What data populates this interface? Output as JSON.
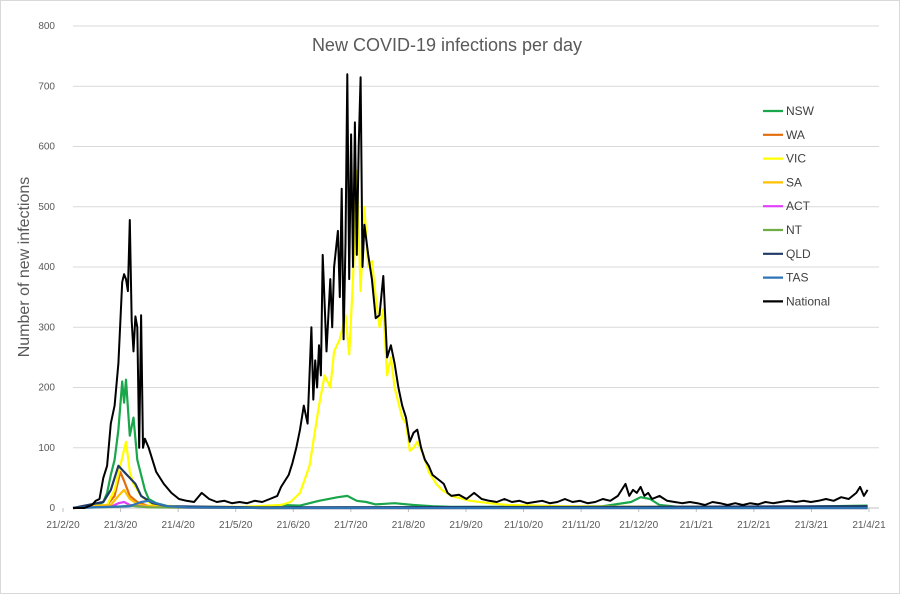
{
  "chart_data": {
    "type": "line",
    "title": "New COVID-19 infections per day",
    "xlabel": "",
    "ylabel": "Number of new infections",
    "ylim": [
      0,
      800
    ],
    "yticks": [
      "0",
      "100",
      "200",
      "300",
      "400",
      "500",
      "600",
      "700",
      "800"
    ],
    "xticks": [
      "21/2/20",
      "21/3/20",
      "21/4/20",
      "21/5/20",
      "21/6/20",
      "21/7/20",
      "21/8/20",
      "21/9/20",
      "21/10/20",
      "21/11/20",
      "21/12/20",
      "21/1/21",
      "21/2/21",
      "21/3/21",
      "21/4/21"
    ],
    "grid": true,
    "legend_position": "right",
    "series": [
      {
        "name": "NSW",
        "color": "#1aa64a",
        "points": [
          [
            0,
            0
          ],
          [
            12,
            2
          ],
          [
            16,
            10
          ],
          [
            18,
            25
          ],
          [
            20,
            55
          ],
          [
            22,
            80
          ],
          [
            24,
            130
          ],
          [
            26,
            210
          ],
          [
            27,
            175
          ],
          [
            28,
            213
          ],
          [
            30,
            120
          ],
          [
            32,
            150
          ],
          [
            34,
            80
          ],
          [
            36,
            55
          ],
          [
            38,
            30
          ],
          [
            40,
            15
          ],
          [
            44,
            8
          ],
          [
            50,
            3
          ],
          [
            60,
            2
          ],
          [
            80,
            1
          ],
          [
            100,
            2
          ],
          [
            110,
            5
          ],
          [
            120,
            4
          ],
          [
            130,
            12
          ],
          [
            140,
            18
          ],
          [
            145,
            20
          ],
          [
            150,
            12
          ],
          [
            155,
            10
          ],
          [
            160,
            6
          ],
          [
            170,
            8
          ],
          [
            180,
            5
          ],
          [
            190,
            3
          ],
          [
            200,
            2
          ],
          [
            230,
            2
          ],
          [
            260,
            2
          ],
          [
            280,
            3
          ],
          [
            295,
            10
          ],
          [
            300,
            18
          ],
          [
            305,
            15
          ],
          [
            310,
            5
          ],
          [
            320,
            2
          ],
          [
            350,
            1
          ],
          [
            380,
            2
          ],
          [
            400,
            3
          ],
          [
            420,
            4
          ]
        ]
      },
      {
        "name": "WA",
        "color": "#e36c0a",
        "points": [
          [
            0,
            0
          ],
          [
            18,
            5
          ],
          [
            22,
            20
          ],
          [
            25,
            60
          ],
          [
            27,
            45
          ],
          [
            30,
            20
          ],
          [
            34,
            10
          ],
          [
            40,
            3
          ],
          [
            50,
            1
          ],
          [
            100,
            0
          ],
          [
            200,
            0
          ],
          [
            300,
            1
          ],
          [
            420,
            0
          ]
        ]
      },
      {
        "name": "VIC",
        "color": "#ffff00",
        "points": [
          [
            0,
            0
          ],
          [
            18,
            5
          ],
          [
            22,
            30
          ],
          [
            25,
            70
          ],
          [
            28,
            110
          ],
          [
            30,
            60
          ],
          [
            32,
            40
          ],
          [
            36,
            20
          ],
          [
            42,
            5
          ],
          [
            60,
            2
          ],
          [
            90,
            2
          ],
          [
            110,
            5
          ],
          [
            115,
            10
          ],
          [
            120,
            25
          ],
          [
            125,
            70
          ],
          [
            128,
            130
          ],
          [
            130,
            170
          ],
          [
            133,
            220
          ],
          [
            136,
            200
          ],
          [
            138,
            260
          ],
          [
            141,
            280
          ],
          [
            144,
            320
          ],
          [
            146,
            255
          ],
          [
            148,
            380
          ],
          [
            150,
            560
          ],
          [
            152,
            360
          ],
          [
            154,
            500
          ],
          [
            156,
            400
          ],
          [
            158,
            410
          ],
          [
            160,
            350
          ],
          [
            162,
            300
          ],
          [
            164,
            330
          ],
          [
            166,
            220
          ],
          [
            168,
            250
          ],
          [
            170,
            200
          ],
          [
            172,
            175
          ],
          [
            174,
            150
          ],
          [
            176,
            140
          ],
          [
            178,
            95
          ],
          [
            180,
            100
          ],
          [
            182,
            110
          ],
          [
            185,
            90
          ],
          [
            188,
            60
          ],
          [
            192,
            40
          ],
          [
            195,
            30
          ],
          [
            200,
            20
          ],
          [
            210,
            12
          ],
          [
            220,
            8
          ],
          [
            230,
            5
          ],
          [
            260,
            3
          ],
          [
            300,
            2
          ],
          [
            350,
            1
          ],
          [
            420,
            1
          ]
        ]
      },
      {
        "name": "SA",
        "color": "#ffc000",
        "points": [
          [
            0,
            0
          ],
          [
            20,
            5
          ],
          [
            24,
            20
          ],
          [
            27,
            30
          ],
          [
            30,
            15
          ],
          [
            35,
            5
          ],
          [
            45,
            2
          ],
          [
            100,
            0
          ],
          [
            300,
            2
          ],
          [
            420,
            1
          ]
        ]
      },
      {
        "name": "ACT",
        "color": "#e040fb",
        "points": [
          [
            0,
            0
          ],
          [
            20,
            2
          ],
          [
            24,
            8
          ],
          [
            27,
            10
          ],
          [
            30,
            5
          ],
          [
            40,
            1
          ],
          [
            100,
            0
          ],
          [
            420,
            0
          ]
        ]
      },
      {
        "name": "NT",
        "color": "#70ad47",
        "points": [
          [
            0,
            0
          ],
          [
            24,
            2
          ],
          [
            30,
            4
          ],
          [
            40,
            1
          ],
          [
            100,
            0
          ],
          [
            420,
            0
          ]
        ]
      },
      {
        "name": "QLD",
        "color": "#1f3864",
        "points": [
          [
            0,
            0
          ],
          [
            16,
            10
          ],
          [
            20,
            30
          ],
          [
            24,
            70
          ],
          [
            27,
            60
          ],
          [
            30,
            50
          ],
          [
            33,
            40
          ],
          [
            36,
            20
          ],
          [
            42,
            8
          ],
          [
            50,
            3
          ],
          [
            100,
            1
          ],
          [
            300,
            2
          ],
          [
            420,
            3
          ]
        ]
      },
      {
        "name": "TAS",
        "color": "#2e75b6",
        "points": [
          [
            0,
            0
          ],
          [
            30,
            3
          ],
          [
            36,
            10
          ],
          [
            40,
            12
          ],
          [
            44,
            8
          ],
          [
            50,
            3
          ],
          [
            60,
            1
          ],
          [
            100,
            0
          ],
          [
            420,
            0
          ]
        ]
      },
      {
        "name": "National",
        "color": "#000000",
        "points": [
          [
            0,
            0
          ],
          [
            6,
            0
          ],
          [
            10,
            5
          ],
          [
            12,
            12
          ],
          [
            14,
            15
          ],
          [
            16,
            50
          ],
          [
            18,
            70
          ],
          [
            20,
            140
          ],
          [
            22,
            170
          ],
          [
            24,
            240
          ],
          [
            26,
            375
          ],
          [
            27,
            388
          ],
          [
            28,
            380
          ],
          [
            29,
            360
          ],
          [
            30,
            478
          ],
          [
            31,
            310
          ],
          [
            32,
            260
          ],
          [
            33,
            318
          ],
          [
            34,
            300
          ],
          [
            35,
            100
          ],
          [
            36,
            320
          ],
          [
            37,
            100
          ],
          [
            38,
            115
          ],
          [
            40,
            100
          ],
          [
            44,
            60
          ],
          [
            48,
            40
          ],
          [
            52,
            25
          ],
          [
            56,
            15
          ],
          [
            60,
            12
          ],
          [
            64,
            10
          ],
          [
            68,
            25
          ],
          [
            72,
            15
          ],
          [
            76,
            10
          ],
          [
            80,
            12
          ],
          [
            84,
            8
          ],
          [
            88,
            10
          ],
          [
            92,
            8
          ],
          [
            96,
            12
          ],
          [
            100,
            10
          ],
          [
            104,
            15
          ],
          [
            108,
            20
          ],
          [
            110,
            35
          ],
          [
            112,
            45
          ],
          [
            114,
            55
          ],
          [
            116,
            75
          ],
          [
            118,
            100
          ],
          [
            120,
            130
          ],
          [
            122,
            170
          ],
          [
            124,
            140
          ],
          [
            126,
            300
          ],
          [
            127,
            180
          ],
          [
            128,
            245
          ],
          [
            129,
            200
          ],
          [
            130,
            270
          ],
          [
            131,
            220
          ],
          [
            132,
            420
          ],
          [
            134,
            260
          ],
          [
            136,
            380
          ],
          [
            137,
            300
          ],
          [
            138,
            400
          ],
          [
            140,
            460
          ],
          [
            141,
            350
          ],
          [
            142,
            530
          ],
          [
            143,
            280
          ],
          [
            144,
            440
          ],
          [
            145,
            720
          ],
          [
            146,
            380
          ],
          [
            147,
            620
          ],
          [
            148,
            400
          ],
          [
            149,
            640
          ],
          [
            150,
            420
          ],
          [
            151,
            600
          ],
          [
            152,
            715
          ],
          [
            153,
            400
          ],
          [
            154,
            470
          ],
          [
            156,
            420
          ],
          [
            158,
            380
          ],
          [
            160,
            315
          ],
          [
            162,
            320
          ],
          [
            164,
            385
          ],
          [
            166,
            250
          ],
          [
            168,
            270
          ],
          [
            170,
            240
          ],
          [
            172,
            200
          ],
          [
            174,
            170
          ],
          [
            176,
            150
          ],
          [
            178,
            110
          ],
          [
            180,
            125
          ],
          [
            182,
            130
          ],
          [
            184,
            100
          ],
          [
            186,
            80
          ],
          [
            188,
            70
          ],
          [
            190,
            55
          ],
          [
            192,
            50
          ],
          [
            194,
            45
          ],
          [
            196,
            40
          ],
          [
            198,
            25
          ],
          [
            200,
            20
          ],
          [
            204,
            22
          ],
          [
            208,
            15
          ],
          [
            212,
            25
          ],
          [
            216,
            15
          ],
          [
            220,
            12
          ],
          [
            224,
            10
          ],
          [
            228,
            15
          ],
          [
            232,
            10
          ],
          [
            236,
            12
          ],
          [
            240,
            8
          ],
          [
            244,
            10
          ],
          [
            248,
            12
          ],
          [
            252,
            8
          ],
          [
            256,
            10
          ],
          [
            260,
            15
          ],
          [
            264,
            10
          ],
          [
            268,
            12
          ],
          [
            272,
            8
          ],
          [
            276,
            10
          ],
          [
            280,
            15
          ],
          [
            284,
            12
          ],
          [
            288,
            20
          ],
          [
            292,
            40
          ],
          [
            294,
            20
          ],
          [
            296,
            30
          ],
          [
            298,
            25
          ],
          [
            300,
            35
          ],
          [
            302,
            20
          ],
          [
            304,
            25
          ],
          [
            306,
            15
          ],
          [
            310,
            20
          ],
          [
            314,
            12
          ],
          [
            318,
            10
          ],
          [
            322,
            8
          ],
          [
            326,
            10
          ],
          [
            330,
            8
          ],
          [
            334,
            5
          ],
          [
            338,
            10
          ],
          [
            342,
            8
          ],
          [
            346,
            5
          ],
          [
            350,
            8
          ],
          [
            354,
            5
          ],
          [
            358,
            8
          ],
          [
            362,
            6
          ],
          [
            366,
            10
          ],
          [
            370,
            8
          ],
          [
            374,
            10
          ],
          [
            378,
            12
          ],
          [
            382,
            10
          ],
          [
            386,
            12
          ],
          [
            390,
            10
          ],
          [
            394,
            12
          ],
          [
            398,
            15
          ],
          [
            402,
            12
          ],
          [
            406,
            18
          ],
          [
            410,
            15
          ],
          [
            414,
            25
          ],
          [
            416,
            35
          ],
          [
            418,
            20
          ],
          [
            420,
            30
          ]
        ]
      }
    ]
  }
}
